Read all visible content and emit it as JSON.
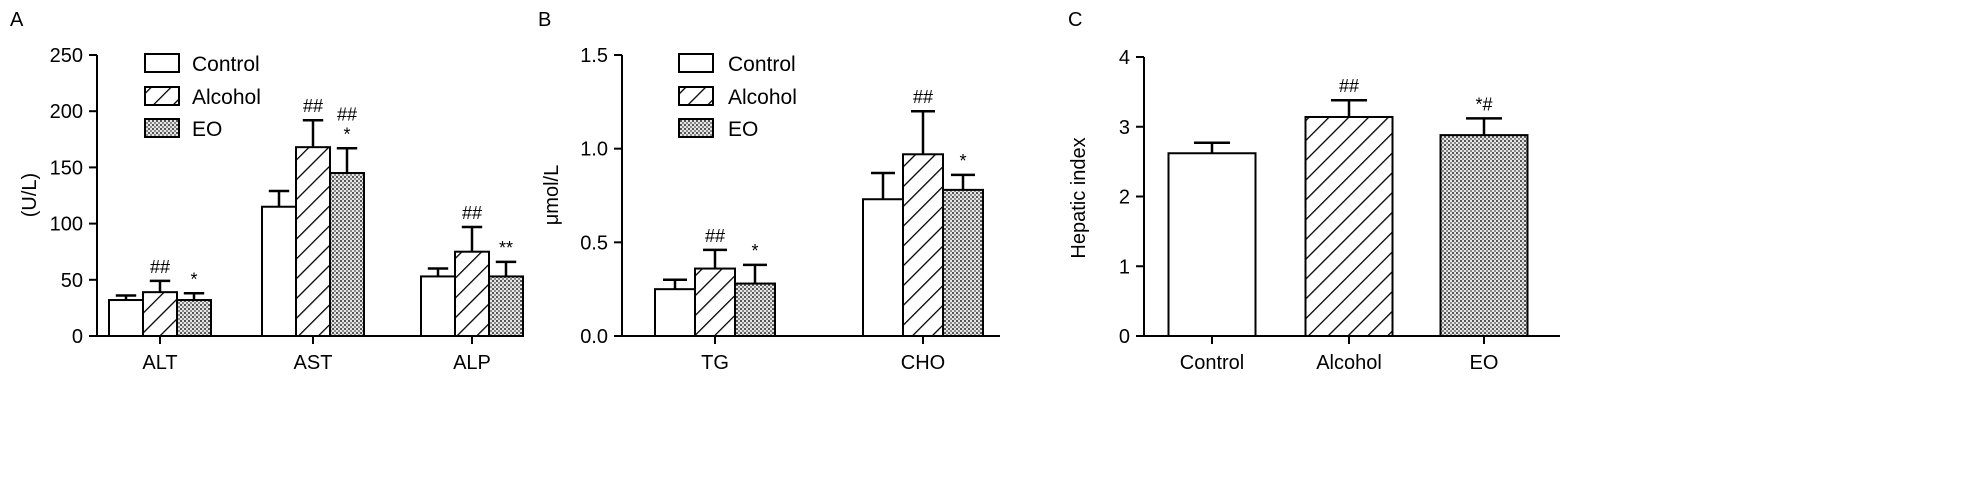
{
  "panels": [
    "A",
    "B",
    "C"
  ],
  "chart_data": [
    {
      "panel": "A",
      "type": "bar",
      "ylabel": "(U/L)",
      "ylim": [
        0,
        250
      ],
      "yticks": [
        "0",
        "50",
        "100",
        "150",
        "200",
        "250"
      ],
      "categories": [
        "ALT",
        "AST",
        "ALP"
      ],
      "legend": {
        "placement": "top-left",
        "entries": [
          "Control",
          "Alcohol",
          "EO"
        ]
      },
      "series": [
        {
          "name": "Control",
          "pattern": "open",
          "values": [
            32,
            115,
            53
          ],
          "errors": [
            4,
            14,
            7
          ],
          "labels": [
            "",
            "",
            ""
          ]
        },
        {
          "name": "Alcohol",
          "pattern": "hatch",
          "values": [
            39,
            168,
            75
          ],
          "errors": [
            10,
            24,
            22
          ],
          "labels": [
            "##",
            "##",
            "##"
          ]
        },
        {
          "name": "EO",
          "pattern": "dots",
          "values": [
            32,
            145,
            53
          ],
          "errors": [
            6,
            22,
            13
          ],
          "labels": [
            "*",
            "##\n*",
            "**"
          ]
        }
      ]
    },
    {
      "panel": "B",
      "type": "bar",
      "ylabel": "μmol/L",
      "ylim": [
        0,
        1.5
      ],
      "yticks": [
        "0.0",
        "0.5",
        "1.0",
        "1.5"
      ],
      "categories": [
        "TG",
        "CHO"
      ],
      "legend": {
        "placement": "top-left",
        "entries": [
          "Control",
          "Alcohol",
          "EO"
        ]
      },
      "series": [
        {
          "name": "Control",
          "pattern": "open",
          "values": [
            0.25,
            0.73
          ],
          "errors": [
            0.05,
            0.14
          ],
          "labels": [
            "",
            ""
          ]
        },
        {
          "name": "Alcohol",
          "pattern": "hatch",
          "values": [
            0.36,
            0.97
          ],
          "errors": [
            0.1,
            0.23
          ],
          "labels": [
            "##",
            "##"
          ]
        },
        {
          "name": "EO",
          "pattern": "dots",
          "values": [
            0.28,
            0.78
          ],
          "errors": [
            0.1,
            0.08
          ],
          "labels": [
            "*",
            "*"
          ]
        }
      ]
    },
    {
      "panel": "C",
      "type": "bar",
      "ylabel": "Hepatic index",
      "ylim": [
        0,
        4
      ],
      "yticks": [
        "0",
        "1",
        "2",
        "3",
        "4"
      ],
      "categories": [
        "Control",
        "Alcohol",
        "EO"
      ],
      "bars": [
        {
          "value": 2.62,
          "error": 0.15,
          "pattern": "open",
          "label": ""
        },
        {
          "value": 3.14,
          "error": 0.24,
          "pattern": "hatch",
          "label": "##"
        },
        {
          "value": 2.88,
          "error": 0.24,
          "pattern": "dots",
          "label": "*#"
        }
      ]
    }
  ]
}
